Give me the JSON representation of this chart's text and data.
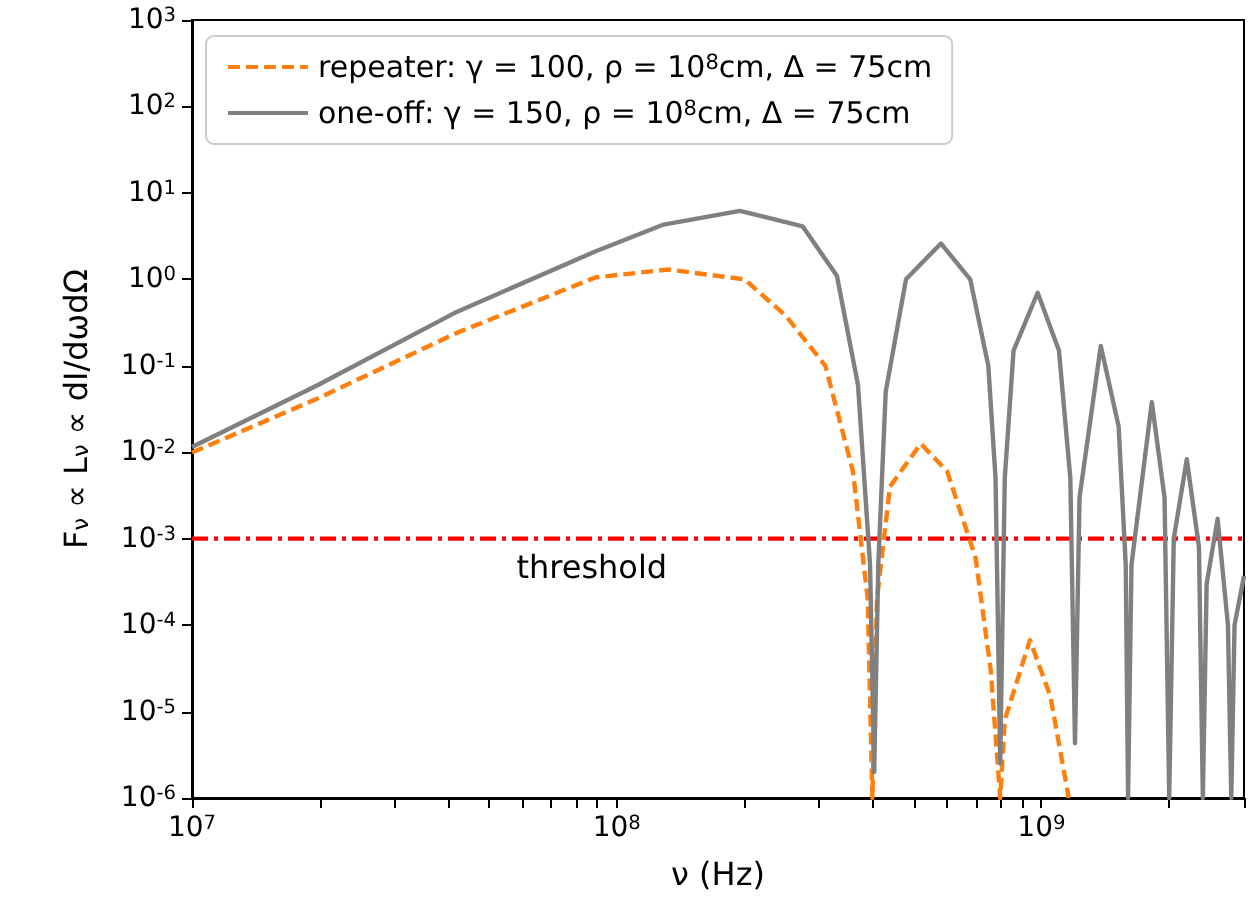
{
  "chart_data": {
    "type": "line",
    "xlabel": "ν (Hz)",
    "ylabel": "F$_{ν}$ ∝ L$_{ν}$ ∝ dI/dωdΩ",
    "log": "xy",
    "legend": "top left",
    "marker": "none",
    "xlim": [
      10000000,
      3000000000
    ],
    "ylim": [
      1e-06,
      1000
    ],
    "xticks": [
      {
        "value": 10000000,
        "label": "10$^{7}$"
      },
      {
        "value": 20000000,
        "label": null
      },
      {
        "value": 30000000,
        "label": null
      },
      {
        "value": 40000000,
        "label": null
      },
      {
        "value": 50000000,
        "label": null
      },
      {
        "value": 60000000,
        "label": null
      },
      {
        "value": 70000000,
        "label": null
      },
      {
        "value": 80000000,
        "label": null
      },
      {
        "value": 90000000,
        "label": null
      },
      {
        "value": 100000000,
        "label": "10$^{8}$"
      },
      {
        "value": 200000000,
        "label": null
      },
      {
        "value": 300000000,
        "label": null
      },
      {
        "value": 400000000,
        "label": null
      },
      {
        "value": 500000000,
        "label": null
      },
      {
        "value": 600000000,
        "label": null
      },
      {
        "value": 700000000,
        "label": null
      },
      {
        "value": 800000000,
        "label": null
      },
      {
        "value": 900000000,
        "label": null
      },
      {
        "value": 1000000000,
        "label": "10$^{9}$"
      },
      {
        "value": 2000000000,
        "label": null
      },
      {
        "value": 3000000000,
        "label": null
      }
    ],
    "yticks": [
      {
        "value": 1e-06,
        "label": "10$^{-6}$"
      },
      {
        "value": 1e-05,
        "label": "10$^{-5}$"
      },
      {
        "value": 0.0001,
        "label": "10$^{-4}$"
      },
      {
        "value": 0.001,
        "label": "10$^{-3}$"
      },
      {
        "value": 0.01,
        "label": "10$^{-2}$"
      },
      {
        "value": 0.1,
        "label": "10$^{-1}$"
      },
      {
        "value": 1,
        "label": "10$^{0}$"
      },
      {
        "value": 10,
        "label": "10$^{1}$"
      },
      {
        "value": 100,
        "label": "10$^{2}$"
      },
      {
        "value": 1000,
        "label": "10$^{3}$"
      }
    ],
    "ref_lines": [
      {
        "axis": "y",
        "value": 0.001,
        "label": "threshold",
        "color": "#ff0000",
        "line_style": "dashdot"
      }
    ],
    "series": [
      {
        "name": "repeater: γ = 100, ρ = 10$^{8}$cm, Δ = 75cm",
        "color": "#ff7f0e",
        "line_style": "dashed",
        "x": [
          10000000,
          19800000,
          42000000,
          89000000,
          132000000,
          200000000,
          250000000,
          310000000,
          360000000,
          390000000,
          400000000,
          410000000,
          440000000,
          520000000,
          600000000,
          700000000,
          760000000,
          800000000,
          820000000,
          940000000,
          1050000000,
          1160000000
        ],
        "values": [
          0.0099,
          0.042,
          0.24,
          1.05,
          1.3,
          1.0,
          0.38,
          0.1,
          0.006,
          0.0002,
          1e-06,
          0.0002,
          0.004,
          0.0126,
          0.006,
          0.0006,
          3e-05,
          1e-06,
          8e-06,
          6.7e-05,
          1.5e-05,
          1e-06
        ]
      },
      {
        "name": "one-off: γ = 150, ρ = 10$^{8}$cm, Δ = 75cm",
        "color": "#808080",
        "line_style": "solid",
        "x": [
          10000000,
          19800000,
          42000000,
          89000000,
          129000000,
          195000000,
          274000000,
          330000000,
          370000000,
          395000000,
          404000000,
          413000000,
          430000000,
          480000000,
          580000000,
          680000000,
          750000000,
          780000000,
          800000000,
          820000000,
          860000000,
          980000000,
          1100000000,
          1170000000,
          1200000000,
          1230000000,
          1380000000,
          1520000000,
          1580000000,
          1600000000,
          1630000000,
          1820000000,
          1950000000,
          2000000000,
          2050000000,
          2200000000,
          2350000000,
          2400000000,
          2450000000,
          2600000000,
          2750000000,
          2800000000,
          2850000000,
          3000000000
        ],
        "values": [
          0.0115,
          0.06,
          0.42,
          2.1,
          4.3,
          6.2,
          4.1,
          1.1,
          0.06,
          0.0005,
          2e-06,
          0.0005,
          0.05,
          1.0,
          2.6,
          1.0,
          0.1,
          0.005,
          2.5e-06,
          0.005,
          0.15,
          0.7,
          0.15,
          0.005,
          4.3e-06,
          0.003,
          0.17,
          0.02,
          0.0005,
          1e-06,
          0.0005,
          0.038,
          0.003,
          1e-06,
          0.001,
          0.0083,
          0.0008,
          1e-06,
          0.0003,
          0.0017,
          0.0001,
          1e-06,
          0.0001,
          0.00037
        ]
      }
    ]
  }
}
